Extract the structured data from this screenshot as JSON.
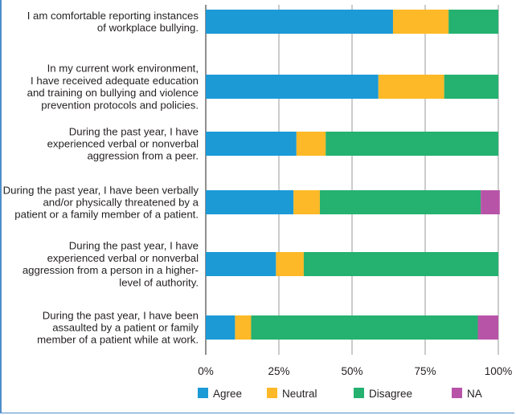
{
  "chart_data": {
    "type": "bar",
    "orientation": "horizontal",
    "stacked": true,
    "categories": [
      [
        "I am comfortable reporting instances",
        "of workplace bullying."
      ],
      [
        "In my current work environment,",
        "I have received adequate education",
        "and training on bullying and violence",
        "prevention protocols and policies."
      ],
      [
        "During the past year, I have",
        "experienced verbal or nonverbal",
        "aggression from a peer."
      ],
      [
        "During the past year, I have been verbally",
        "and/or physically threatened by a",
        "patient or a family member of a patient."
      ],
      [
        "During the past year, I have",
        "experienced verbal or nonverbal",
        "aggression from a person in a higher-",
        "level of authority."
      ],
      [
        "During the past year, I have been",
        "assaulted by a patient or family",
        "member of a patient while at work."
      ]
    ],
    "series": [
      {
        "name": "Agree",
        "color": "#1b9ad6",
        "values": [
          64,
          59,
          31,
          30,
          24,
          10
        ]
      },
      {
        "name": "Neutral",
        "color": "#fdb927",
        "values": [
          19,
          22.5,
          10,
          9,
          9.5,
          5.5
        ]
      },
      {
        "name": "Disagree",
        "color": "#25b170",
        "values": [
          17,
          18.5,
          59,
          55,
          66.5,
          77.5
        ]
      },
      {
        "name": "NA",
        "color": "#b854a8",
        "values": [
          0,
          0,
          0,
          6.5,
          0,
          7
        ]
      }
    ],
    "xlim": [
      0,
      100
    ],
    "xticks": [
      "0%",
      "25%",
      "50%",
      "75%",
      "100%"
    ],
    "grid": true,
    "legend_position": "bottom",
    "title": "",
    "xlabel": "",
    "ylabel": ""
  }
}
